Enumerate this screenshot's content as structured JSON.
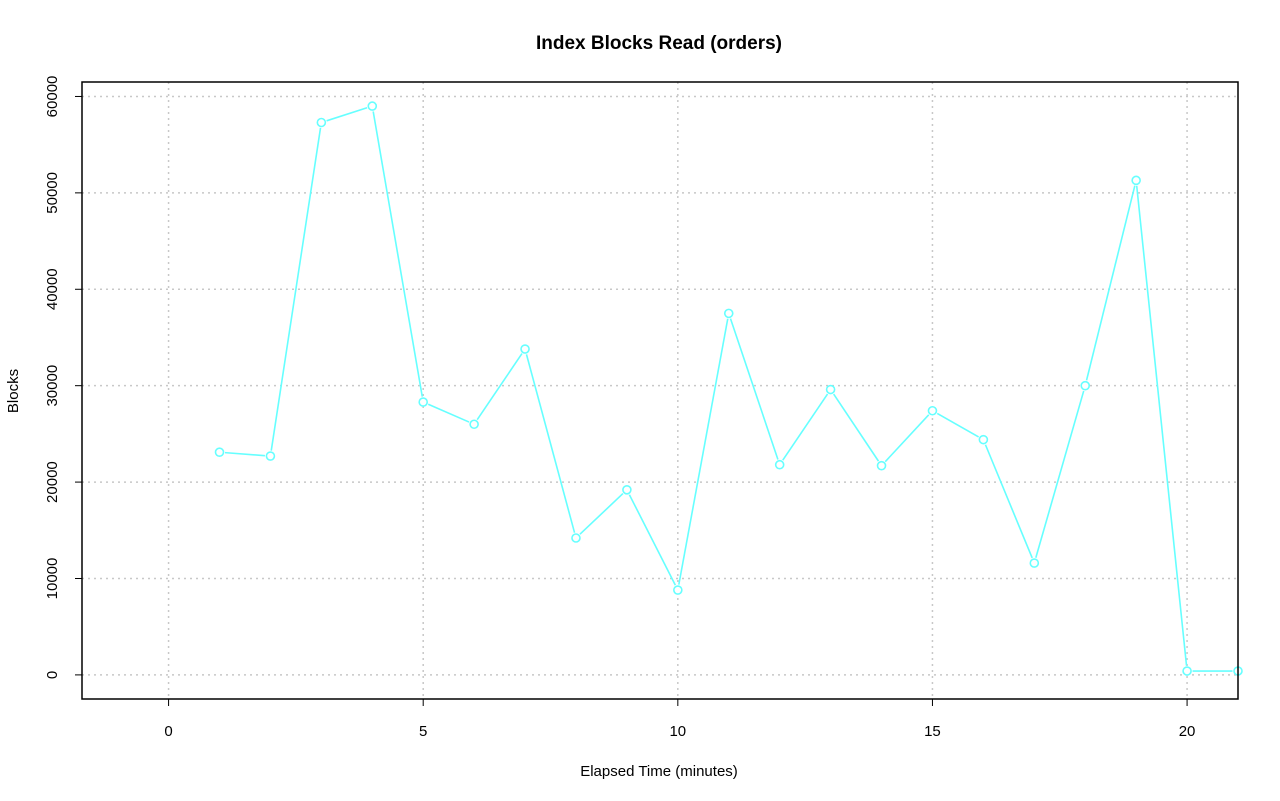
{
  "chart_data": {
    "type": "line",
    "title": "Index Blocks Read (orders)",
    "xlabel": "Elapsed Time (minutes)",
    "ylabel": "Blocks",
    "xlim": [
      -1.7,
      21.0
    ],
    "ylim": [
      -2500,
      61500
    ],
    "x_ticks": [
      0,
      5,
      10,
      15,
      20
    ],
    "y_ticks": [
      0,
      10000,
      20000,
      30000,
      40000,
      50000,
      60000
    ],
    "x_tick_labels": [
      "0",
      "5",
      "10",
      "15",
      "20"
    ],
    "y_tick_labels": [
      "0",
      "10000",
      "20000",
      "30000",
      "40000",
      "50000",
      "60000"
    ],
    "grid": true,
    "series": [
      {
        "color": "#66ffff",
        "marker": "open-circle",
        "x": [
          1,
          2,
          3,
          4,
          5,
          6,
          7,
          8,
          9,
          10,
          11,
          12,
          13,
          14,
          15,
          16,
          17,
          18,
          19,
          20,
          21
        ],
        "y": [
          23100,
          22700,
          57300,
          59000,
          28300,
          26000,
          33800,
          14200,
          19200,
          8800,
          37500,
          21800,
          29600,
          21700,
          27400,
          24400,
          11600,
          30000,
          51300,
          400,
          400
        ]
      }
    ]
  }
}
